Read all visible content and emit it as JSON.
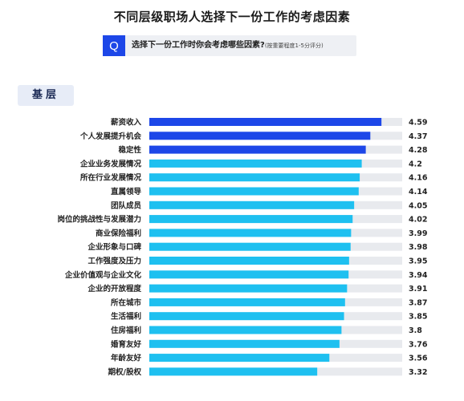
{
  "title": "不同层级职场人选择下一份工作的考虑因素",
  "question": {
    "badge": "Q",
    "text": "选择下一份工作时你会考虑哪些因素?",
    "note": "(按重要程度1-5分评分)"
  },
  "section": "基层",
  "colors": {
    "top_bar": "#1d47e8",
    "bar": "#1ec0f0",
    "track": "#e8eaee"
  },
  "chart_data": {
    "type": "bar",
    "orientation": "horizontal",
    "title": "不同层级职场人选择下一份工作的考虑因素",
    "xlim": [
      0,
      5
    ],
    "categories": [
      "薪资收入",
      "个人发展提升机会",
      "稳定性",
      "企业业务发展情况",
      "所在行业发展情况",
      "直属领导",
      "团队成员",
      "岗位的挑战性与发展潜力",
      "商业保险福利",
      "企业形象与口碑",
      "工作强度及压力",
      "企业价值观与企业文化",
      "企业的开放程度",
      "所在城市",
      "生活福利",
      "住房福利",
      "婚育友好",
      "年龄友好",
      "期权/股权"
    ],
    "values": [
      4.59,
      4.37,
      4.28,
      4.2,
      4.16,
      4.14,
      4.05,
      4.02,
      3.99,
      3.98,
      3.95,
      3.94,
      3.91,
      3.87,
      3.85,
      3.8,
      3.76,
      3.56,
      3.32
    ],
    "value_labels": [
      "4.59",
      "4.37",
      "4.28",
      "4.2",
      "4.16",
      "4.14",
      "4.05",
      "4.02",
      "3.99",
      "3.98",
      "3.95",
      "3.94",
      "3.91",
      "3.87",
      "3.85",
      "3.8",
      "3.76",
      "3.56",
      "3.32"
    ],
    "highlight_count": 3
  }
}
